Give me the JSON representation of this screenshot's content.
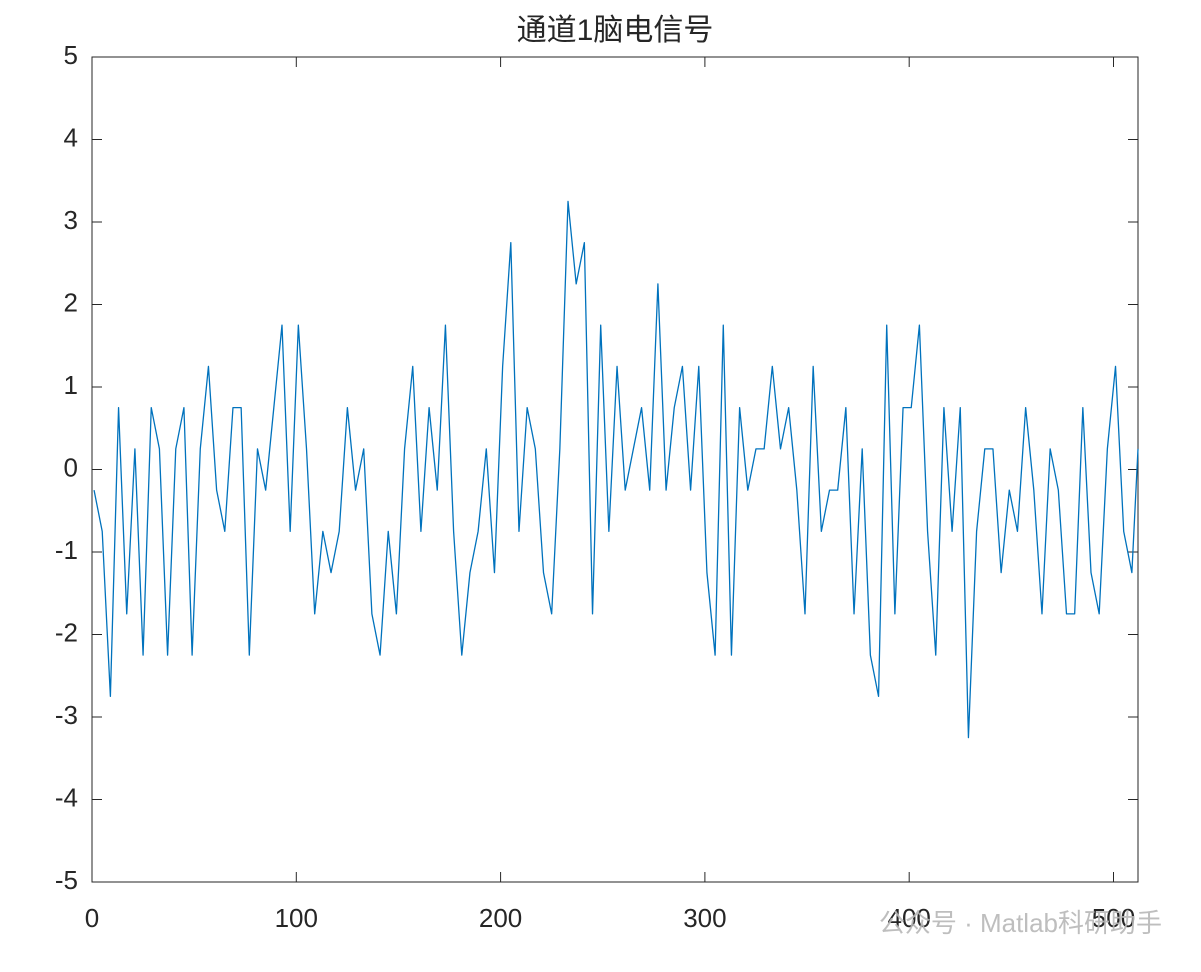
{
  "chart_data": {
    "type": "line",
    "title": "通道1脑电信号",
    "x": [
      1,
      5,
      9,
      13,
      17,
      21,
      25,
      29,
      33,
      37,
      41,
      45,
      49,
      53,
      57,
      61,
      65,
      69,
      73,
      77,
      81,
      85,
      89,
      93,
      97,
      101,
      105,
      109,
      113,
      117,
      121,
      125,
      129,
      133,
      137,
      141,
      145,
      149,
      153,
      157,
      161,
      165,
      169,
      173,
      177,
      181,
      185,
      189,
      193,
      197,
      201,
      205,
      209,
      213,
      217,
      221,
      225,
      229,
      233,
      237,
      241,
      245,
      249,
      253,
      257,
      261,
      265,
      269,
      273,
      277,
      281,
      285,
      289,
      293,
      297,
      301,
      305,
      309,
      313,
      317,
      321,
      325,
      329,
      333,
      337,
      341,
      345,
      349,
      353,
      357,
      361,
      365,
      369,
      373,
      377,
      381,
      385,
      389,
      393,
      397,
      401,
      405,
      409,
      413,
      417,
      421,
      425,
      429,
      433,
      437,
      441,
      445,
      449,
      453,
      457,
      461,
      465,
      469,
      473,
      477,
      481,
      485,
      489,
      493,
      497,
      501,
      505,
      509,
      512
    ],
    "series": [
      {
        "color": "#0072bd",
        "values": [
          -0.25,
          -0.75,
          -2.75,
          0.75,
          -1.75,
          0.25,
          -2.25,
          0.75,
          0.25,
          -2.25,
          0.25,
          0.75,
          -2.25,
          0.25,
          1.25,
          -0.25,
          -0.75,
          0.75,
          0.75,
          -2.25,
          0.25,
          -0.25,
          0.75,
          1.75,
          -0.75,
          1.75,
          0.25,
          -1.75,
          -0.75,
          -1.25,
          -0.75,
          0.75,
          -0.25,
          0.25,
          -1.75,
          -2.25,
          -0.75,
          -1.75,
          0.25,
          1.25,
          -0.75,
          0.75,
          -0.25,
          1.75,
          -0.75,
          -2.25,
          -1.25,
          -0.75,
          0.25,
          -1.25,
          1.25,
          2.75,
          -0.75,
          0.75,
          0.25,
          -1.25,
          -1.75,
          0.25,
          3.25,
          2.25,
          2.75,
          -1.75,
          1.75,
          -0.75,
          1.25,
          -0.25,
          0.25,
          0.75,
          -0.25,
          2.25,
          -0.25,
          0.75,
          1.25,
          -0.25,
          1.25,
          -1.25,
          -2.25,
          1.75,
          -2.25,
          0.75,
          -0.25,
          0.25,
          0.25,
          1.25,
          0.25,
          0.75,
          -0.25,
          -1.75,
          1.25,
          -0.75,
          -0.25,
          -0.25,
          0.75,
          -1.75,
          0.25,
          -2.25,
          -2.75,
          1.75,
          -1.75,
          0.75,
          0.75,
          1.75,
          -0.75,
          -2.25,
          0.75,
          -0.75,
          0.75,
          -3.25,
          -0.75,
          0.25,
          0.25,
          -1.25,
          -0.25,
          -0.75,
          0.75,
          -0.25,
          -1.75,
          0.25,
          -0.25,
          -1.75,
          -1.75,
          0.75,
          -1.25,
          -1.75,
          0.25,
          1.25,
          -0.75,
          -1.25,
          0.25
        ]
      }
    ],
    "xlim": [
      0,
      512
    ],
    "ylim": [
      -5,
      5
    ],
    "xticks": [
      0,
      100,
      200,
      300,
      400,
      500
    ],
    "yticks": [
      -5,
      -4,
      -3,
      -2,
      -1,
      0,
      1,
      2,
      3,
      4,
      5
    ],
    "watermark": "公众号 · Matlab科研助手"
  }
}
